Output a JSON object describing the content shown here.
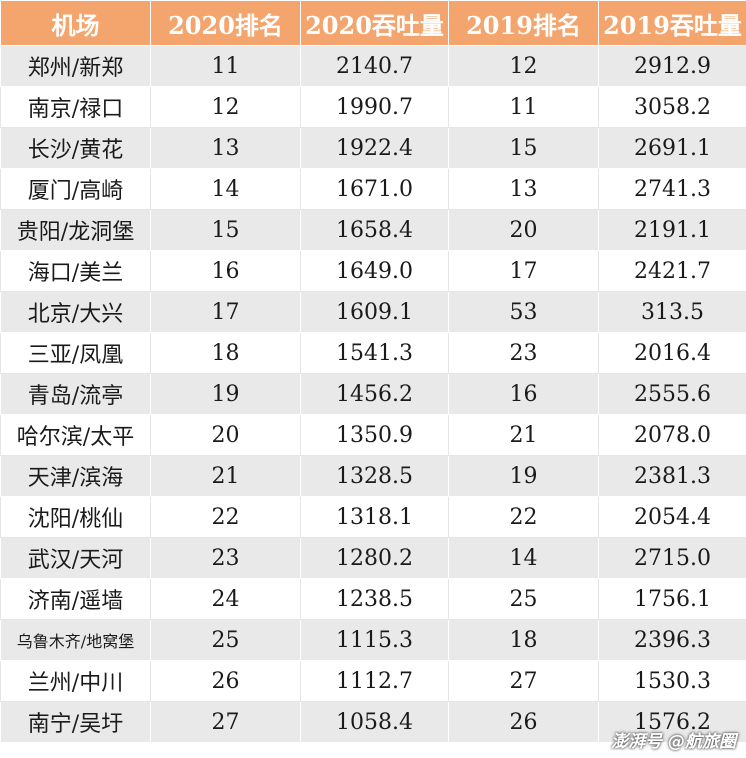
{
  "headers": [
    "机场",
    "2020排名",
    "2020吞吐量",
    "2019排名",
    "2019吞吐量"
  ],
  "rows": [
    [
      "郑州/新郑",
      "11",
      "2140.7",
      "12",
      "2912.9"
    ],
    [
      "南京/禄口",
      "12",
      "1990.7",
      "11",
      "3058.2"
    ],
    [
      "长沙/黄花",
      "13",
      "1922.4",
      "15",
      "2691.1"
    ],
    [
      "厦门/高崎",
      "14",
      "1671.0",
      "13",
      "2741.3"
    ],
    [
      "贵阳/龙洞堡",
      "15",
      "1658.4",
      "20",
      "2191.1"
    ],
    [
      "海口/美兰",
      "16",
      "1649.0",
      "17",
      "2421.7"
    ],
    [
      "北京/大兴",
      "17",
      "1609.1",
      "53",
      "313.5"
    ],
    [
      "三亚/凤凰",
      "18",
      "1541.3",
      "23",
      "2016.4"
    ],
    [
      "青岛/流亭",
      "19",
      "1456.2",
      "16",
      "2555.6"
    ],
    [
      "哈尔滨/太平",
      "20",
      "1350.9",
      "21",
      "2078.0"
    ],
    [
      "天津/滨海",
      "21",
      "1328.5",
      "19",
      "2381.3"
    ],
    [
      "沈阳/桃仙",
      "22",
      "1318.1",
      "22",
      "2054.4"
    ],
    [
      "武汉/天河",
      "23",
      "1280.2",
      "14",
      "2715.0"
    ],
    [
      "济南/遥墙",
      "24",
      "1238.5",
      "25",
      "1756.1"
    ],
    [
      "乌鲁木齐/地窝堡",
      "25",
      "1115.3",
      "18",
      "2396.3"
    ],
    [
      "兰州/中川",
      "26",
      "1112.7",
      "27",
      "1530.3"
    ],
    [
      "南宁/吴圩",
      "27",
      "1058.4",
      "26",
      "1576.2"
    ]
  ],
  "watermark": "澎湃号 @航旅圈"
}
